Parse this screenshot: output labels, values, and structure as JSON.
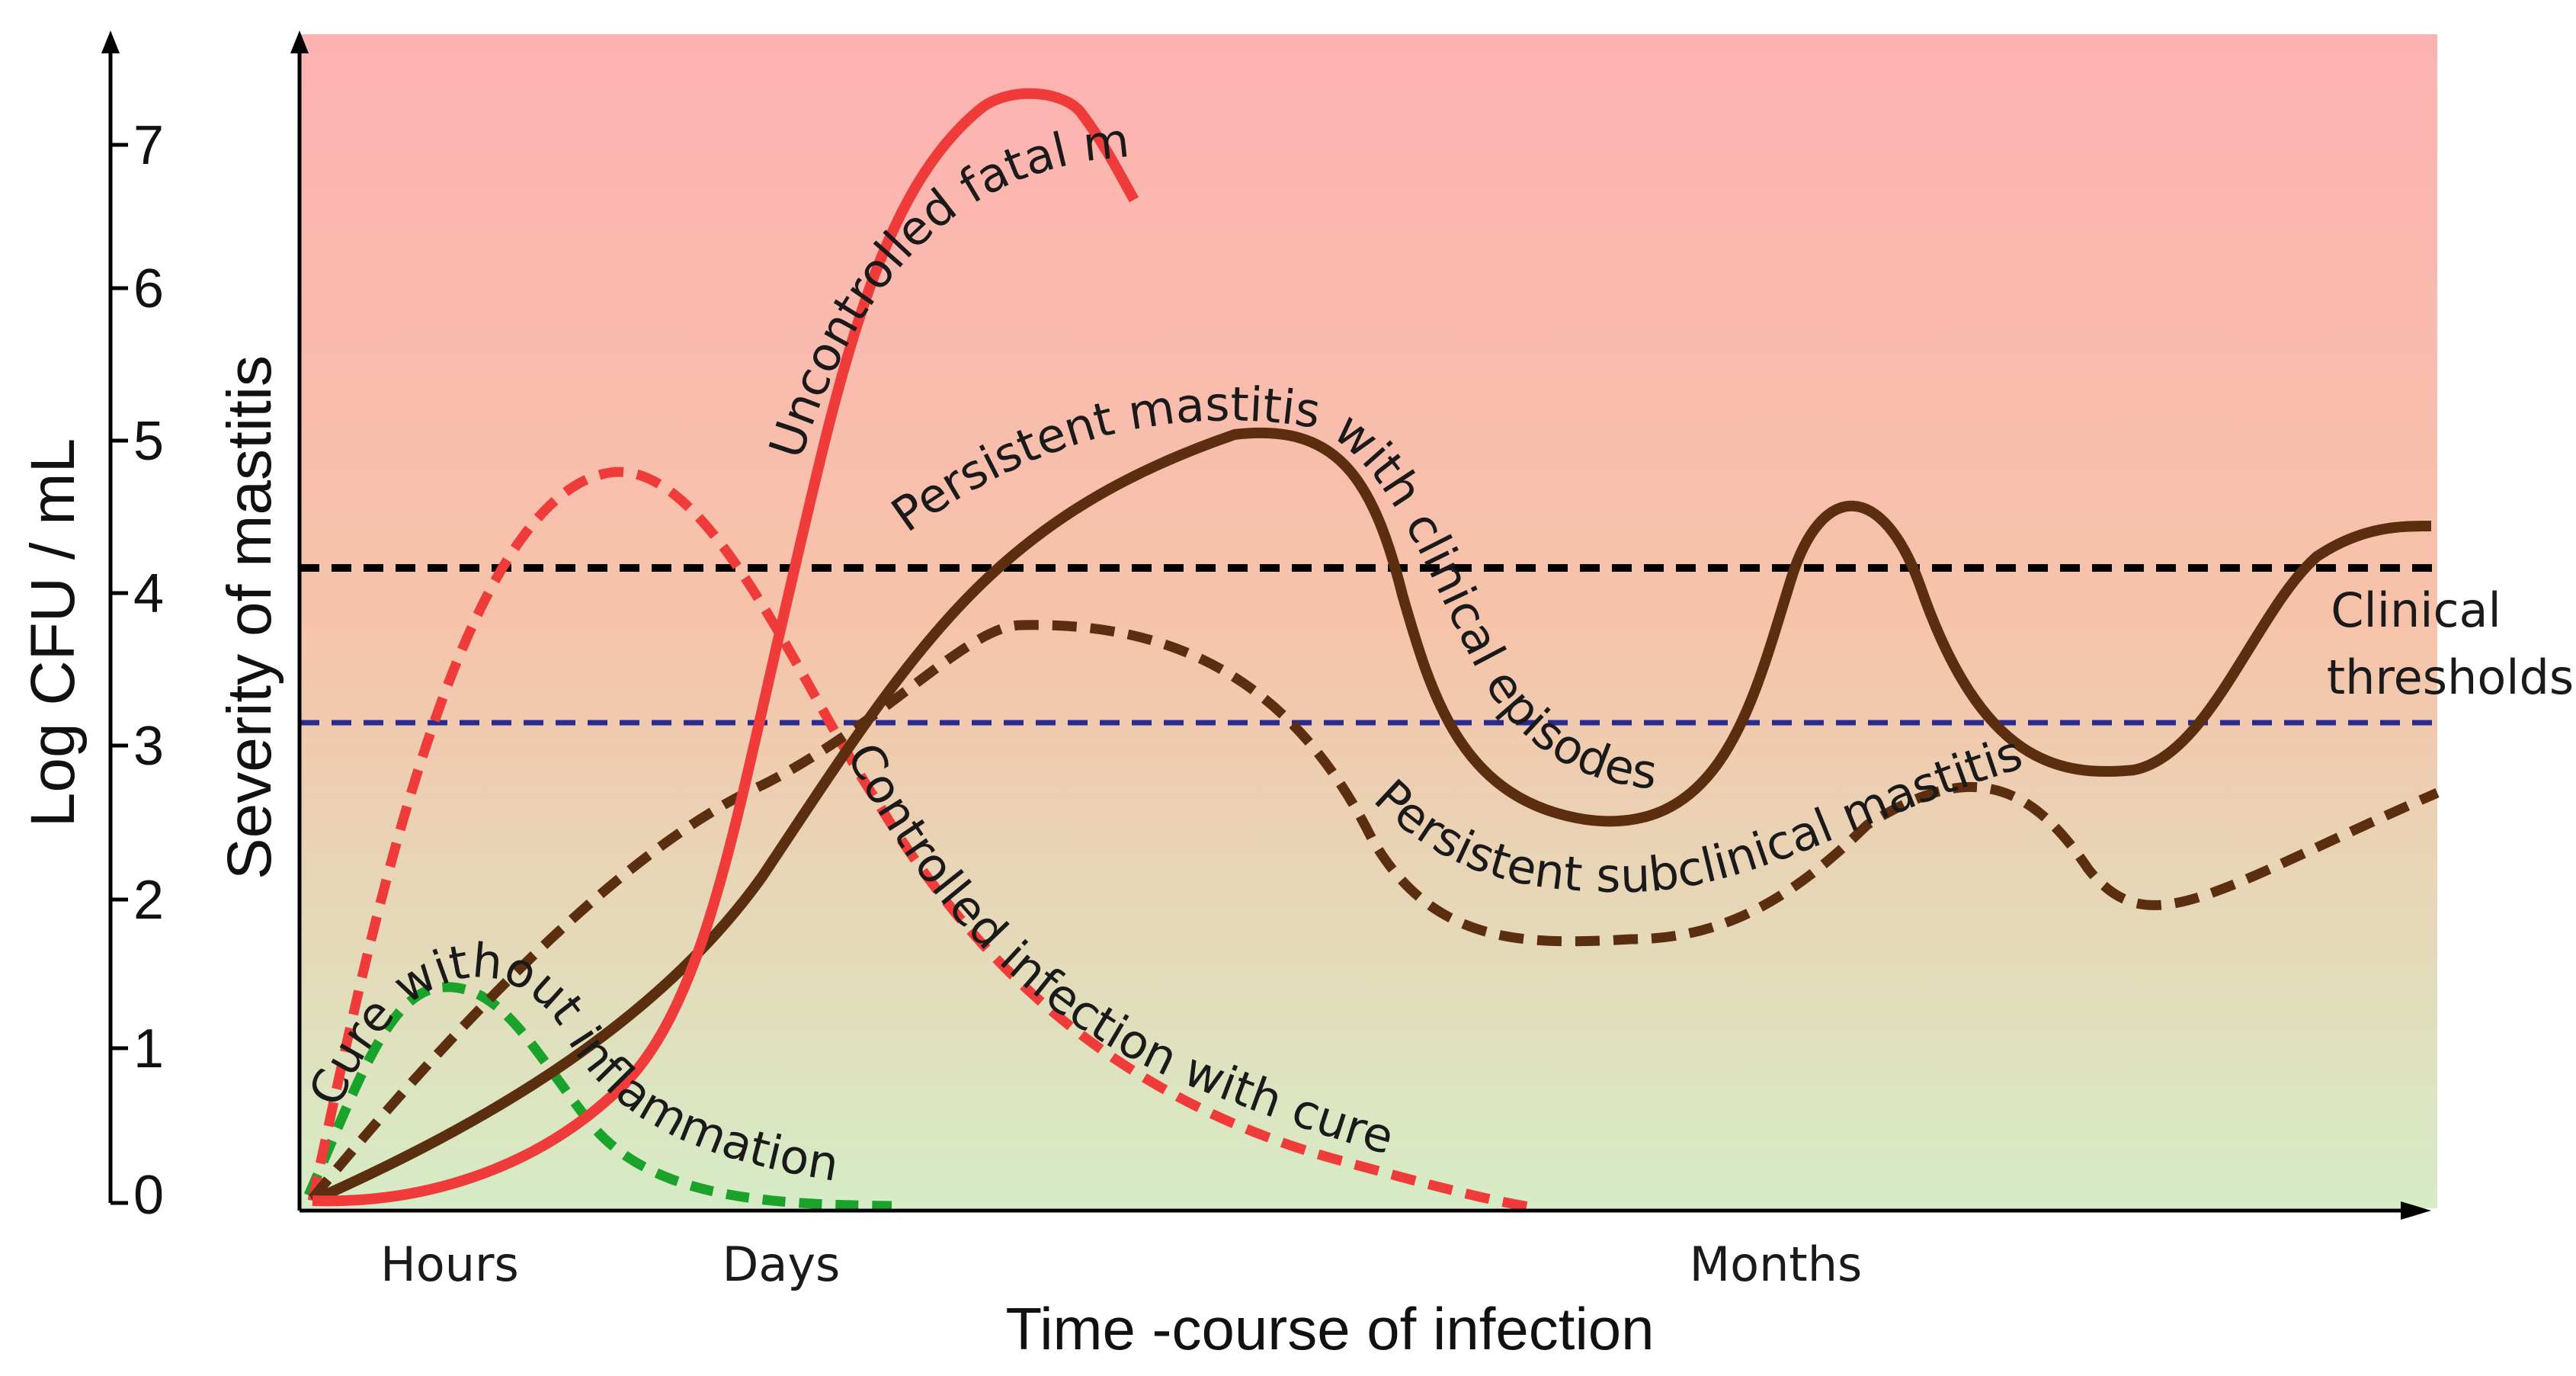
{
  "figure": {
    "y_axis_label": "Log CFU / mL",
    "y_ticks": [
      "0",
      "1",
      "2",
      "3",
      "4",
      "5",
      "6",
      "7"
    ],
    "severity_label": "Severity of mastitis",
    "x_axis_label": "Time -course of infection",
    "x_tick_hours": "Hours",
    "x_tick_days": "Days",
    "x_tick_months": "Months",
    "threshold_label_line1": "Clinical",
    "threshold_label_line2": "thresholds"
  },
  "curves": {
    "fatal": {
      "label": "Uncontrolled fatal mastitis",
      "color": "#f03b3b",
      "style": "solid"
    },
    "controlled": {
      "label": "Controlled infection with cure",
      "color": "#f03b3b",
      "style": "dashed"
    },
    "persistent_clinical": {
      "label": "Persistent mastitis with clinical episodes",
      "color": "#5a2e0e",
      "style": "solid"
    },
    "persistent_subclinical": {
      "label": "Persistent subclinical mastitis",
      "color": "#5a2e0e",
      "style": "dashed"
    },
    "cure_without": {
      "label": "Cure without inflammation",
      "color": "#1aa32a",
      "style": "dashed"
    }
  },
  "thresholds": {
    "clinical_upper": {
      "log_cfu": 4.2,
      "color": "#000000"
    },
    "clinical_lower": {
      "log_cfu": 3.15,
      "color": "#2a2a90"
    }
  },
  "colors": {
    "background_top": "#fdb2b2",
    "background_bottom": "#d6ecc6"
  }
}
